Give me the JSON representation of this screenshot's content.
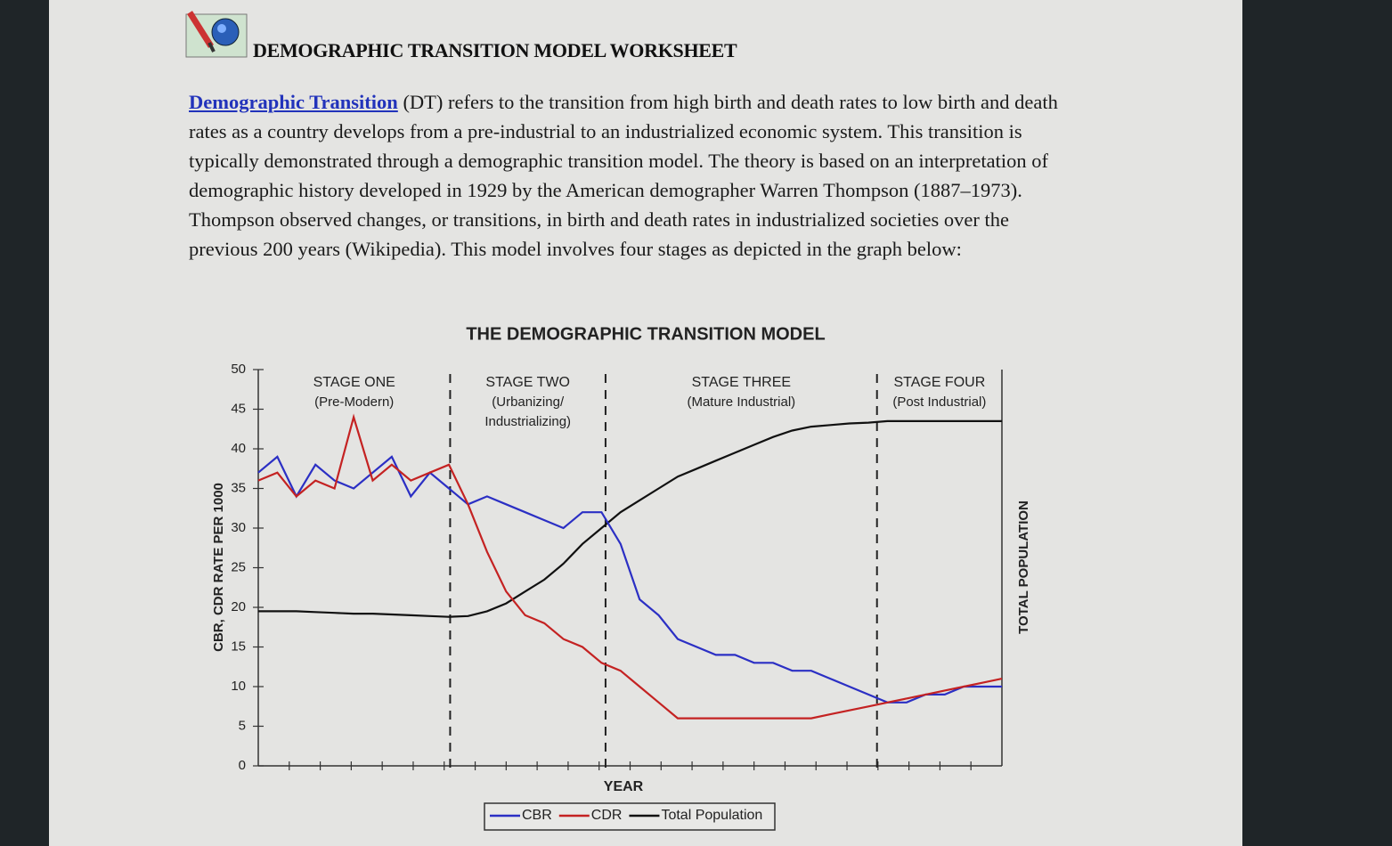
{
  "header": {
    "title": "DEMOGRAPHIC TRANSITION MODEL WORKSHEET"
  },
  "intro": {
    "link": "Demographic Transition",
    "text": "(DT) refers to the transition from high birth and death rates to low birth and death rates as a country develops from a pre-industrial to an industrialized economic system. This transition is typically demonstrated through a demographic transition model.  The theory is based on an interpretation of demographic history developed in 1929 by the American demographer Warren Thompson (1887–1973). Thompson observed changes, or transitions, in birth and death rates in industrialized societies over the previous 200 years (Wikipedia).  This model involves four stages as depicted in the graph below:"
  },
  "chart_data": {
    "type": "line",
    "title": "THE DEMOGRAPHIC TRANSITION MODEL",
    "y_label": "CBR, CDR RATE PER 1000",
    "x_label": "YEAR",
    "y2_label": "TOTAL POPULATION",
    "ylim": [
      0,
      50
    ],
    "yticks": [
      0,
      5,
      10,
      15,
      20,
      25,
      30,
      35,
      40,
      45,
      50
    ],
    "stages": [
      {
        "name": "STAGE ONE",
        "subtitle": [
          "(Pre-Modern)"
        ]
      },
      {
        "name": "STAGE TWO",
        "subtitle": [
          "(Urbanizing/",
          "Industrializing)"
        ]
      },
      {
        "name": "STAGE THREE",
        "subtitle": [
          "(Mature Industrial)"
        ]
      },
      {
        "name": "STAGE FOUR",
        "subtitle": [
          "(Post Industrial)"
        ]
      }
    ],
    "series": [
      {
        "name": "CBR",
        "color": "#2b2fc4",
        "values": [
          37,
          39,
          34,
          38,
          36,
          35,
          37,
          39,
          34,
          37,
          35,
          33,
          34,
          33,
          32,
          31,
          30,
          32,
          32,
          28,
          21,
          19,
          16,
          15,
          14,
          14,
          13,
          13,
          12,
          12,
          11,
          10,
          9,
          8,
          8,
          9,
          9,
          10,
          10,
          10
        ]
      },
      {
        "name": "CDR",
        "color": "#c42222",
        "values": [
          36,
          37,
          34,
          36,
          35,
          44,
          36,
          38,
          36,
          37,
          38,
          33,
          27,
          22,
          19,
          18,
          16,
          15,
          13,
          12,
          10,
          8,
          6,
          6,
          6,
          6,
          6,
          6,
          6,
          6,
          6.5,
          7,
          7.5,
          8,
          8.5,
          9,
          9.5,
          10,
          10.5,
          11
        ]
      },
      {
        "name": "Total Population",
        "color": "#111111",
        "values": [
          19.5,
          19.5,
          19.5,
          19.4,
          19.3,
          19.2,
          19.2,
          19.1,
          19,
          18.9,
          18.8,
          18.9,
          19.5,
          20.5,
          22,
          23.5,
          25.5,
          28,
          30,
          32,
          33.5,
          35,
          36.5,
          37.5,
          38.5,
          39.5,
          40.5,
          41.5,
          42.3,
          42.8,
          43,
          43.2,
          43.3,
          43.5,
          43.5,
          43.5,
          43.5,
          43.5,
          43.5,
          43.5
        ]
      }
    ]
  }
}
